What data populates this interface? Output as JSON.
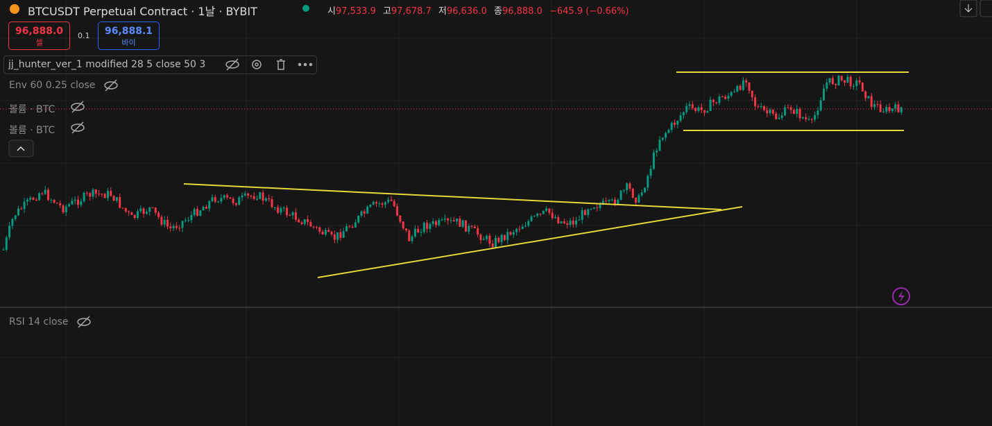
{
  "header": {
    "title": "BTCUSDT Perpetual Contract · 1날 · BYBIT",
    "ohlc": [
      {
        "label": "시",
        "value": "97,533.9"
      },
      {
        "label": "고",
        "value": "97,678.7"
      },
      {
        "label": "저",
        "value": "96,636.0"
      },
      {
        "label": "종",
        "value": "96,888.0"
      }
    ],
    "change": "−645.9 (−0.66%)"
  },
  "trade": {
    "sell_price": "96,888.0",
    "sell_label": "셀",
    "spread": "0.1",
    "buy_price": "96,888.1",
    "buy_label": "바이"
  },
  "indicators": [
    "jj_hunter_ver_1 modified 28 5 close 50 3",
    "Env 60 0.25 close",
    "볼륨 · BTC",
    "볼륨 · BTC",
    "RSI 14 close"
  ]
}
